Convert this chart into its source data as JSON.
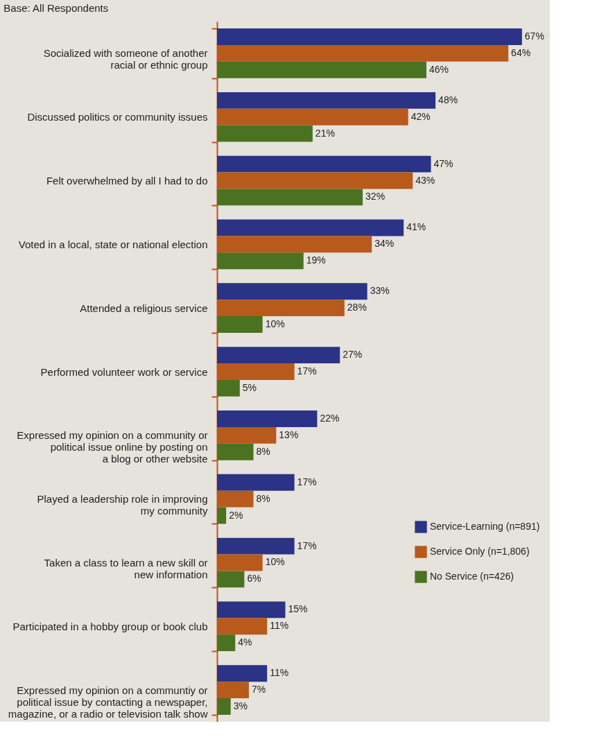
{
  "chart_data": {
    "type": "bar",
    "orientation": "horizontal",
    "subtitle": "Base: All Respondents",
    "categories": [
      "Socialized with someone of another\nracial or ethnic group",
      "Discussed politics or community issues",
      "Felt overwhelmed by all I had to do",
      "Voted in a local, state or national election",
      "Attended a religious service",
      "Performed volunteer work or service",
      "Expressed my opinion on a community or\npolitical issue online by posting on\na blog or other website",
      "Played a leadership role in improving\nmy community",
      "Taken a class to learn a new skill or\nnew information",
      "Participated in a hobby group or book club",
      "Expressed my opinion on a communtiy or\npolitical issue by contacting a newspaper,\nmagazine, or a radio or television talk show"
    ],
    "series": [
      {
        "name": "Service-Learning (n=891)",
        "color": "#2b3386",
        "values": [
          67,
          48,
          47,
          41,
          33,
          27,
          22,
          17,
          17,
          15,
          11
        ],
        "value_labels": [
          "67%",
          "48%",
          "47%",
          "41%",
          "33%",
          "27%",
          "22%",
          "17%",
          "17%",
          "15%",
          "11%"
        ]
      },
      {
        "name": "Service Only (n=1,806)",
        "color": "#b85a1c",
        "values": [
          64,
          42,
          43,
          34,
          28,
          17,
          13,
          8,
          10,
          11,
          7
        ],
        "value_labels": [
          "64%",
          "42%",
          "43%",
          "34%",
          "28%",
          "17%",
          "13%",
          "8%",
          "10%",
          "11%",
          "7%"
        ]
      },
      {
        "name": "No Service (n=426)",
        "color": "#4a7220",
        "values": [
          46,
          21,
          32,
          19,
          10,
          5,
          8,
          2,
          6,
          4,
          3
        ],
        "value_labels": [
          "46%",
          "21%",
          "32%",
          "19%",
          "10%",
          "5%",
          "8%",
          "2%",
          "6%",
          "4%",
          "3%"
        ]
      }
    ],
    "legend": "bottom right",
    "grid": false
  }
}
